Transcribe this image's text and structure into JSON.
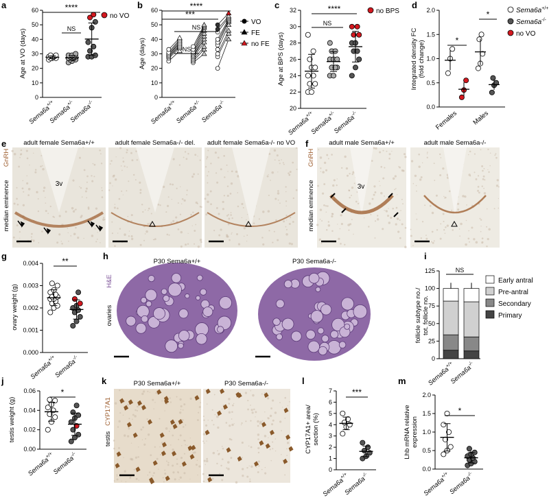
{
  "colors": {
    "open": "#ffffff",
    "het": "#aaaaaa",
    "ko": "#555555",
    "red": "#d41920",
    "he_tissue": "#7a4f96",
    "gnrh_brown": "#9b5a2a",
    "bg_ihc": "#eae8e0"
  },
  "panels": {
    "a": {
      "letter": "a",
      "ylabel": "Age at VO (days)",
      "ticks": [
        "0",
        "10",
        "20",
        "30",
        "40",
        "50",
        "60"
      ],
      "xticks": [
        "Sema6a+/+",
        "Sema6a+/-",
        "Sema6a-/-"
      ],
      "sig": [
        "NS",
        "****"
      ],
      "legend": "no VO",
      "chart_data": {
        "type": "scatter",
        "ylim": [
          0,
          60
        ],
        "groups": [
          {
            "name": "Sema6a+/+",
            "values": [
              26,
              27,
              27,
              27,
              28,
              28,
              28,
              29,
              29
            ]
          },
          {
            "name": "Sema6a+/-",
            "values": [
              24,
              25,
              26,
              26,
              27,
              27,
              27,
              28,
              28,
              28,
              29,
              29,
              30
            ]
          },
          {
            "name": "Sema6a-/-",
            "values": [
              28,
              28,
              29,
              32,
              35,
              38,
              48,
              52,
              55,
              57
            ],
            "red": [
              55,
              57
            ]
          }
        ]
      }
    },
    "b": {
      "letter": "b",
      "ylabel": "Age (days)",
      "ticks": [
        "0",
        "10",
        "20",
        "30",
        "40",
        "50",
        "60"
      ],
      "xticks": [
        "Sema6a+/+",
        "Sema6a+/-",
        "Sema6a-/-"
      ],
      "sig": [
        "NS",
        "NS",
        "***",
        "****"
      ],
      "legend": [
        "VO",
        "FE",
        "no FE"
      ],
      "chart_data": {
        "type": "paired",
        "ylim": [
          0,
          60
        ],
        "groups": [
          {
            "name": "Sema6a+/+",
            "vo": [
              25,
              27,
              28,
              28,
              29,
              29,
              30,
              31,
              33
            ],
            "fe": [
              32,
              34,
              35,
              36,
              37,
              38,
              39,
              40,
              41
            ]
          },
          {
            "name": "Sema6a+/-",
            "vo": [
              24,
              25,
              26,
              27,
              28,
              28,
              29,
              30,
              31,
              33,
              35
            ],
            "fe": [
              30,
              33,
              35,
              38,
              40,
              42,
              44,
              46,
              48,
              49,
              50
            ]
          },
          {
            "name": "Sema6a-/-",
            "vo": [
              20,
              28,
              30,
              33,
              36,
              38,
              40,
              45,
              47,
              50
            ],
            "fe": [
              40,
              44,
              46,
              50,
              52,
              53,
              54,
              55,
              56,
              58
            ]
          }
        ]
      }
    },
    "c": {
      "letter": "c",
      "ylabel": "Age at BPS (days)",
      "ticks": [
        "20",
        "22",
        "24",
        "26",
        "28",
        "30",
        "32"
      ],
      "xticks": [
        "Sema6a+/+",
        "Sema6a+/-",
        "Sema6a-/-"
      ],
      "sig": [
        "NS",
        "****"
      ],
      "legend": "no BPS",
      "chart_data": {
        "type": "scatter",
        "ylim": [
          20,
          32
        ],
        "groups": [
          {
            "name": "Sema6a+/+",
            "values": [
              22,
              22,
              23,
              23,
              24,
              24,
              25,
              25,
              26,
              27,
              29
            ]
          },
          {
            "name": "Sema6a+/-",
            "values": [
              24,
              24,
              25,
              25,
              25,
              26,
              26,
              26,
              27,
              27,
              28
            ]
          },
          {
            "name": "Sema6a-/-",
            "values": [
              24,
              25,
              26,
              27,
              27,
              28,
              28,
              29,
              29,
              30,
              30
            ],
            "red": [
              29,
              30,
              30
            ]
          }
        ]
      }
    },
    "d": {
      "letter": "d",
      "ylabel": "Integrated density FC (fold change)",
      "ticks": [
        "0.0",
        "0.5",
        "1.0",
        "1.5",
        "2.0"
      ],
      "xticks": [
        "Females",
        "Males"
      ],
      "sig": [
        "*",
        "*"
      ],
      "legend": [
        "Sema6a+/+",
        "Sema6a-/-",
        "no VO"
      ],
      "chart_data": {
        "type": "scatter",
        "ylim": [
          0,
          2
        ],
        "groups": [
          {
            "name": "Females Sema6a+/+",
            "values": [
              0.7,
              1.0,
              1.2
            ]
          },
          {
            "name": "Females Sema6a-/-",
            "values": [
              0.2,
              0.35,
              0.55
            ],
            "red": [
              0.2,
              0.35,
              0.55
            ]
          },
          {
            "name": "Males Sema6a+/+",
            "values": [
              0.8,
              0.9,
              1.1,
              1.4,
              1.5
            ]
          },
          {
            "name": "Males Sema6a-/-",
            "values": [
              0.3,
              0.45,
              0.5,
              0.6
            ]
          }
        ]
      }
    },
    "e": {
      "letter": "e",
      "side": "median eminence",
      "stain": "GnRH",
      "titles": [
        "adult female Sema6a+/+",
        "adult female Sema6a-/- del.",
        "adult female Sema6a-/- no VO"
      ],
      "ventricle": "3v"
    },
    "f": {
      "letter": "f",
      "side": "median eminence",
      "stain": "GnRH",
      "titles": [
        "adult male Sema6a+/+",
        "adult male Sema6a-/-"
      ],
      "ventricle": "3v"
    },
    "g": {
      "letter": "g",
      "ylabel": "ovary weight (g)",
      "ticks": [
        "0.000",
        "0.001",
        "0.002",
        "0.003",
        "0.004"
      ],
      "xticks": [
        "Sema6a+/+",
        "Sema6a-/-"
      ],
      "sig": "**",
      "chart_data": {
        "type": "scatter",
        "ylim": [
          0,
          0.004
        ],
        "groups": [
          {
            "name": "Sema6a+/+",
            "values": [
              0.0018,
              0.002,
              0.0021,
              0.0022,
              0.0023,
              0.0024,
              0.0024,
              0.0025,
              0.0025,
              0.0026,
              0.0027,
              0.0028,
              0.003,
              0.0031
            ]
          },
          {
            "name": "Sema6a-/-",
            "values": [
              0.0012,
              0.0014,
              0.0016,
              0.0018,
              0.0019,
              0.002,
              0.0021,
              0.0022,
              0.0024,
              0.0027
            ],
            "red": [
              0.0022,
              0.0024
            ]
          }
        ]
      }
    },
    "h": {
      "letter": "h",
      "side": "ovaries",
      "stain": "H&E",
      "titles": [
        "P30 Sema6a+/+",
        "P30 Sema6a-/-"
      ]
    },
    "i": {
      "letter": "i",
      "ylabel": "follicle subtype no./ tot. follicle no.",
      "ticks": [
        "0",
        "25",
        "50",
        "75",
        "100",
        "125"
      ],
      "xticks": [
        "Sema6a+/+",
        "Sema6a-/-"
      ],
      "sig": "NS",
      "legend": [
        "Early antral",
        "Pre-antral",
        "Secondary",
        "Primary"
      ],
      "chart_data": {
        "type": "stacked-bar",
        "ylim": [
          0,
          125
        ],
        "categories": [
          "Sema6a+/+",
          "Sema6a-/-"
        ],
        "series": [
          {
            "name": "Primary",
            "values": [
              12,
              11
            ]
          },
          {
            "name": "Secondary",
            "values": [
              22,
              20
            ]
          },
          {
            "name": "Pre-antral",
            "values": [
              48,
              50
            ]
          },
          {
            "name": "Early antral",
            "values": [
              18,
              19
            ]
          }
        ]
      }
    },
    "j": {
      "letter": "j",
      "ylabel": "testis weight (g)",
      "ticks": [
        "0.00",
        "0.02",
        "0.04",
        "0.06"
      ],
      "xticks": [
        "Sema6a+/+",
        "Sema6a-/-"
      ],
      "sig": "*",
      "chart_data": {
        "type": "scatter",
        "ylim": [
          0,
          0.06
        ],
        "groups": [
          {
            "name": "Sema6a+/+",
            "values": [
              0.02,
              0.028,
              0.033,
              0.036,
              0.04,
              0.043,
              0.046,
              0.05,
              0.051
            ]
          },
          {
            "name": "Sema6a-/-",
            "values": [
              0.008,
              0.012,
              0.015,
              0.02,
              0.024,
              0.028,
              0.032,
              0.035,
              0.038,
              0.045
            ],
            "red": [
              0.024
            ]
          }
        ]
      }
    },
    "k": {
      "letter": "k",
      "side": "testis",
      "stain": "CYP17A1",
      "titles": [
        "P30 Sema6a+/+",
        "P30 Sema6a-/-"
      ]
    },
    "l": {
      "letter": "l",
      "ylabel": "CYP17A1+ area/ section (%)",
      "ticks": [
        "0",
        "1",
        "2",
        "3",
        "4",
        "5",
        "6",
        "7"
      ],
      "xticks": [
        "Sema6a+/+",
        "Sema6a-/-"
      ],
      "sig": "***",
      "chart_data": {
        "type": "scatter",
        "ylim": [
          0,
          7
        ],
        "groups": [
          {
            "name": "Sema6a+/+",
            "values": [
              3.2,
              3.8,
              4.0,
              4.2,
              4.5,
              5.0
            ]
          },
          {
            "name": "Sema6a-/-",
            "values": [
              1.0,
              1.2,
              1.5,
              1.7,
              2.0,
              2.4
            ]
          }
        ]
      }
    },
    "m": {
      "letter": "m",
      "ylabel": "Lhb mRNA relative expression",
      "ticks": [
        "0.0",
        "0.5",
        "1.0",
        "1.5",
        "2.0"
      ],
      "xticks": [
        "Sema6a+/+",
        "Sema6a-/-"
      ],
      "sig": "*",
      "chart_data": {
        "type": "scatter",
        "ylim": [
          0,
          2
        ],
        "groups": [
          {
            "name": "Sema6a+/+",
            "values": [
              0.4,
              0.5,
              0.6,
              0.8,
              1.0,
              1.2,
              1.5
            ]
          },
          {
            "name": "Sema6a-/-",
            "values": [
              0.1,
              0.15,
              0.2,
              0.25,
              0.3,
              0.35,
              0.4,
              0.45,
              0.55
            ]
          }
        ]
      }
    }
  }
}
